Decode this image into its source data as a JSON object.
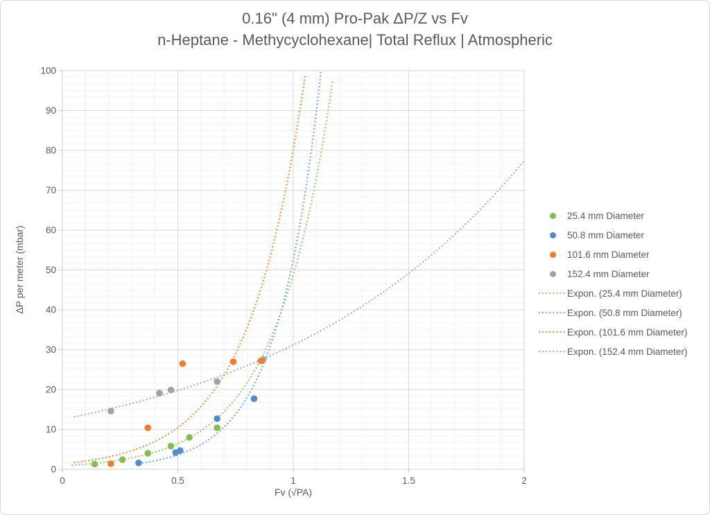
{
  "chart": {
    "title_line1": "0.16\" (4 mm) Pro-Pak ΔP/Z vs Fv",
    "title_line2": "n-Heptane - Methycyclohexane| Total Reflux | Atmospheric"
  },
  "palette": {
    "text": "#595959",
    "grid_major": "#D9D9D9",
    "grid_minor": "#F2F2F2",
    "plot_border": "#D0D0D0",
    "tick": "#BFBFBF"
  },
  "chart_data": {
    "type": "scatter",
    "title": "0.16\" (4 mm) Pro-Pak ΔP/Z vs Fv",
    "subtitle": "n-Heptane - Methycyclohexane| Total Reflux | Atmospheric",
    "xlabel": "Fv (√PA)",
    "ylabel": "ΔP per meter (mbar)",
    "xlim": [
      0,
      2
    ],
    "ylim": [
      0,
      100
    ],
    "grid": true,
    "legend_position": "right",
    "x_ticks": [
      {
        "value": 0,
        "label": "0"
      },
      {
        "value": 0.5,
        "label": "0.5"
      },
      {
        "value": 1,
        "label": "1"
      },
      {
        "value": 1.5,
        "label": "1.5"
      },
      {
        "value": 2,
        "label": "2"
      }
    ],
    "y_ticks": [
      {
        "value": 0,
        "label": "0"
      },
      {
        "value": 10,
        "label": "10"
      },
      {
        "value": 20,
        "label": "20"
      },
      {
        "value": 30,
        "label": "30"
      },
      {
        "value": 40,
        "label": "40"
      },
      {
        "value": 50,
        "label": "50"
      },
      {
        "value": 60,
        "label": "60"
      },
      {
        "value": 70,
        "label": "70"
      },
      {
        "value": 80,
        "label": "80"
      },
      {
        "value": 90,
        "label": "90"
      },
      {
        "value": 100,
        "label": "100"
      }
    ],
    "axis_units": {
      "x_major": 0.5,
      "x_minor": 0.1,
      "y_major": 10,
      "y_minor": 1.6667
    },
    "series": [
      {
        "name": "25.4 mm Diameter",
        "color": "#82BC52",
        "points": [
          [
            0.14,
            1.3
          ],
          [
            0.26,
            2.4
          ],
          [
            0.37,
            4.0
          ],
          [
            0.47,
            5.8
          ],
          [
            0.55,
            8.0
          ],
          [
            0.67,
            10.4
          ]
        ]
      },
      {
        "name": "50.8 mm Diameter",
        "color": "#538AC9",
        "points": [
          [
            0.33,
            1.6
          ],
          [
            0.49,
            4.2
          ],
          [
            0.51,
            4.7
          ],
          [
            0.67,
            12.7
          ],
          [
            0.83,
            17.7
          ]
        ]
      },
      {
        "name": "101.6 mm Diameter",
        "color": "#ED7D31",
        "points": [
          [
            0.21,
            1.4
          ],
          [
            0.37,
            10.4
          ],
          [
            0.52,
            26.5
          ],
          [
            0.74,
            27.0
          ],
          [
            0.86,
            27.2
          ]
        ]
      },
      {
        "name": "152.4 mm Diameter",
        "color": "#A2A2A2",
        "points": [
          [
            0.21,
            14.6
          ],
          [
            0.42,
            19.1
          ],
          [
            0.47,
            19.9
          ],
          [
            0.67,
            22.0
          ],
          [
            0.87,
            27.5
          ]
        ]
      }
    ],
    "trendlines": [
      {
        "name": "Expon. (25.4 mm Diameter)",
        "color": "#9DC97A",
        "model": "exponential",
        "a": 0.85,
        "b": 4.05,
        "x_range": [
          0.04,
          1.18
        ]
      },
      {
        "name": "Expon. (50.8 mm Diameter)",
        "color": "#82A9DC",
        "model": "exponential",
        "a": 0.25,
        "b": 5.35,
        "x_range": [
          0.33,
          1.12
        ]
      },
      {
        "name": "Expon. (101.6 mm Diameter)",
        "color": "#EE9150",
        "model": "exponential",
        "a": 1.37,
        "b": 4.07,
        "x_range": [
          0.05,
          1.06
        ]
      },
      {
        "name": "Expon. (152.4 mm Diameter)",
        "color": "#B0B0B0",
        "model": "exponential",
        "a": 12.55,
        "b": 0.91,
        "x_range": [
          0.05,
          2.0
        ]
      }
    ]
  }
}
